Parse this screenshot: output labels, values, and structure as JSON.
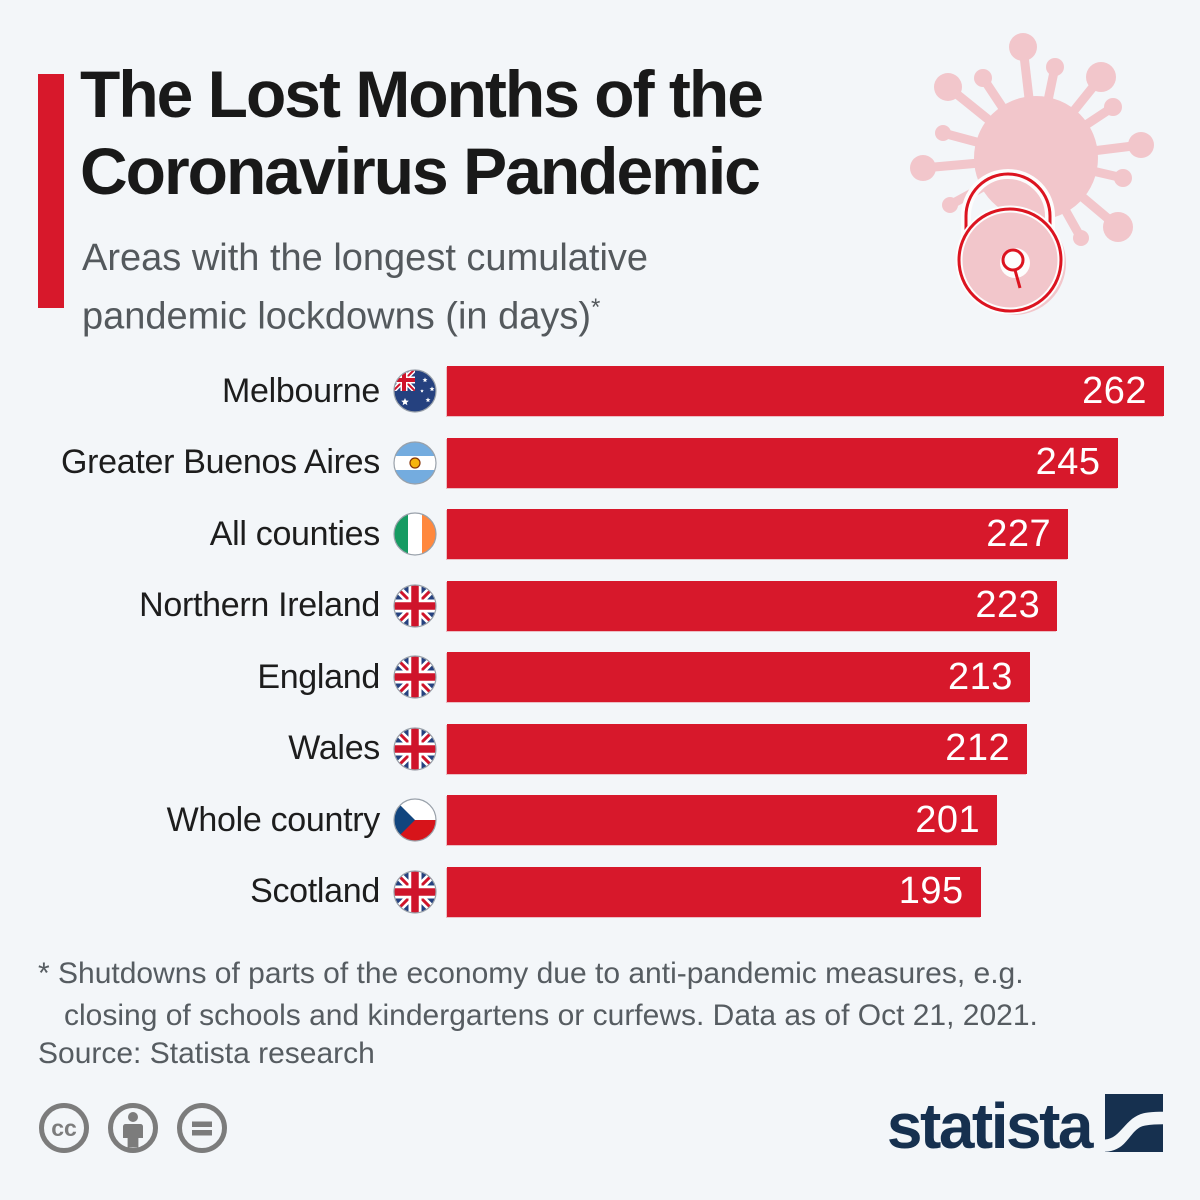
{
  "page": {
    "background_color": "#f3f6f9"
  },
  "header": {
    "title_line1": "The Lost Months of the",
    "title_line2": "Coronavirus Pandemic",
    "subtitle_line1": "Areas with the longest cumulative",
    "subtitle_line2": "pandemic lockdowns (in days)",
    "footnote_marker": "*",
    "accent_color": "#d7182b",
    "illustration": "coronavirus-with-padlock"
  },
  "chart_data": {
    "type": "bar",
    "orientation": "horizontal",
    "title": "Areas with the longest cumulative pandemic lockdowns (in days)",
    "unit": "days",
    "xlim": [
      0,
      262
    ],
    "grid": false,
    "bar_color": "#d7182b",
    "value_label_color": "#ffffff",
    "rows": [
      {
        "label": "Melbourne",
        "flag": "australia",
        "value": 262
      },
      {
        "label": "Greater Buenos Aires",
        "flag": "argentina",
        "value": 245
      },
      {
        "label": "All counties",
        "flag": "ireland",
        "value": 227
      },
      {
        "label": "Northern Ireland",
        "flag": "uk",
        "value": 223
      },
      {
        "label": "England",
        "flag": "uk",
        "value": 213
      },
      {
        "label": "Wales",
        "flag": "uk",
        "value": 212
      },
      {
        "label": "Whole country",
        "flag": "czechia",
        "value": 201
      },
      {
        "label": "Scotland",
        "flag": "uk",
        "value": 195
      }
    ]
  },
  "footer": {
    "footnote_line1": "* Shutdowns of parts of the economy due to anti-pandemic measures, e.g.",
    "footnote_line2": "closing of schools and kindergartens or curfews. Data as of Oct 21, 2021.",
    "source": "Source: Statista research",
    "license_icons": [
      "cc-icon",
      "by-person-icon",
      "nd-equals-icon"
    ],
    "brand": "statista",
    "brand_color": "#16304f"
  }
}
